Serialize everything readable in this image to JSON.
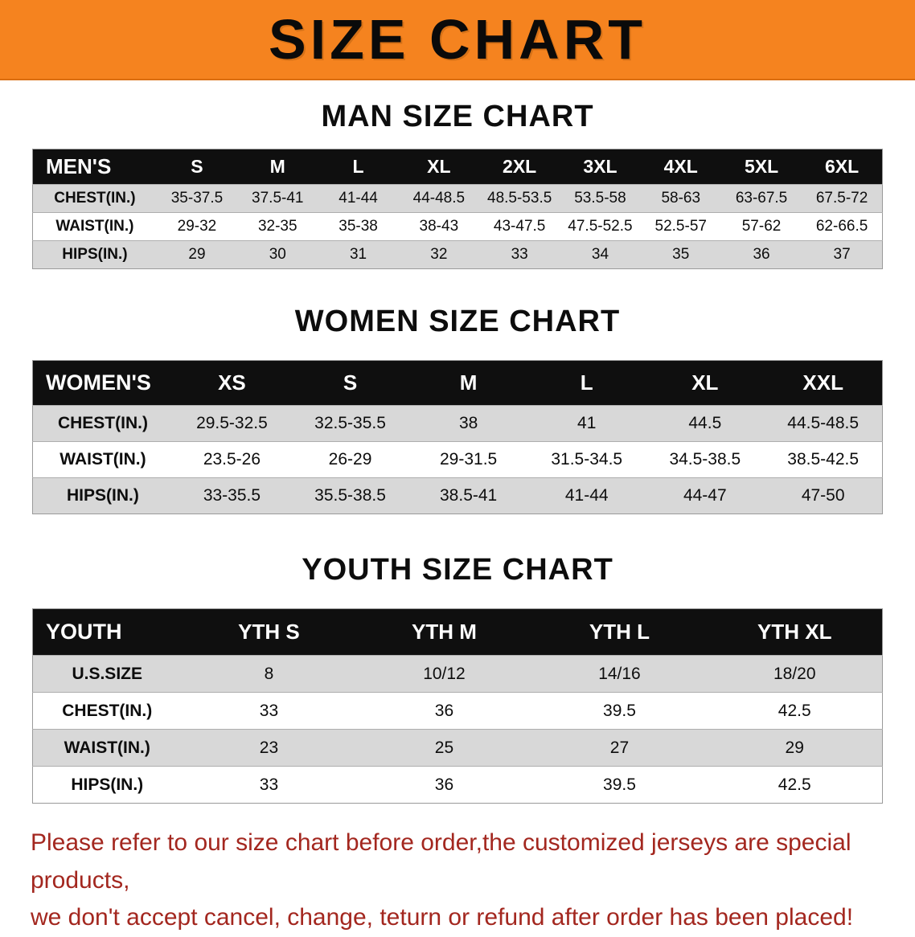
{
  "banner": {
    "title": "SIZE CHART"
  },
  "colors": {
    "banner_orange": "#f5831f",
    "table_header_black": "#0f0f0f",
    "row_gray": "#d8d8d8",
    "note_red": "#a3271f"
  },
  "chart_data": [
    {
      "type": "table",
      "title": "MAN SIZE CHART",
      "corner_label": "MEN'S",
      "columns": [
        "S",
        "M",
        "L",
        "XL",
        "2XL",
        "3XL",
        "4XL",
        "5XL",
        "6XL"
      ],
      "rows": [
        {
          "label": "CHEST(IN.)",
          "values": [
            "35-37.5",
            "37.5-41",
            "41-44",
            "44-48.5",
            "48.5-53.5",
            "53.5-58",
            "58-63",
            "63-67.5",
            "67.5-72"
          ]
        },
        {
          "label": "WAIST(IN.)",
          "values": [
            "29-32",
            "32-35",
            "35-38",
            "38-43",
            "43-47.5",
            "47.5-52.5",
            "52.5-57",
            "57-62",
            "62-66.5"
          ]
        },
        {
          "label": "HIPS(IN.)",
          "values": [
            "29",
            "30",
            "31",
            "32",
            "33",
            "34",
            "35",
            "36",
            "37"
          ]
        }
      ]
    },
    {
      "type": "table",
      "title": "WOMEN SIZE CHART",
      "corner_label": "WOMEN'S",
      "columns": [
        "XS",
        "S",
        "M",
        "L",
        "XL",
        "XXL"
      ],
      "rows": [
        {
          "label": "CHEST(IN.)",
          "values": [
            "29.5-32.5",
            "32.5-35.5",
            "38",
            "41",
            "44.5",
            "44.5-48.5"
          ]
        },
        {
          "label": "WAIST(IN.)",
          "values": [
            "23.5-26",
            "26-29",
            "29-31.5",
            "31.5-34.5",
            "34.5-38.5",
            "38.5-42.5"
          ]
        },
        {
          "label": "HIPS(IN.)",
          "values": [
            "33-35.5",
            "35.5-38.5",
            "38.5-41",
            "41-44",
            "44-47",
            "47-50"
          ]
        }
      ]
    },
    {
      "type": "table",
      "title": "YOUTH SIZE CHART",
      "corner_label": "YOUTH",
      "columns": [
        "YTH S",
        "YTH M",
        "YTH L",
        "YTH XL"
      ],
      "rows": [
        {
          "label": "U.S.SIZE",
          "values": [
            "8",
            "10/12",
            "14/16",
            "18/20"
          ]
        },
        {
          "label": "CHEST(IN.)",
          "values": [
            "33",
            "36",
            "39.5",
            "42.5"
          ]
        },
        {
          "label": "WAIST(IN.)",
          "values": [
            "23",
            "25",
            "27",
            "29"
          ]
        },
        {
          "label": "HIPS(IN.)",
          "values": [
            "33",
            "36",
            "39.5",
            "42.5"
          ]
        }
      ]
    }
  ],
  "footer": {
    "line1": "Please refer to our size chart before order,the customized jerseys are special products,",
    "line2": "we don't accept cancel, change, teturn or refund after order has been placed!"
  }
}
